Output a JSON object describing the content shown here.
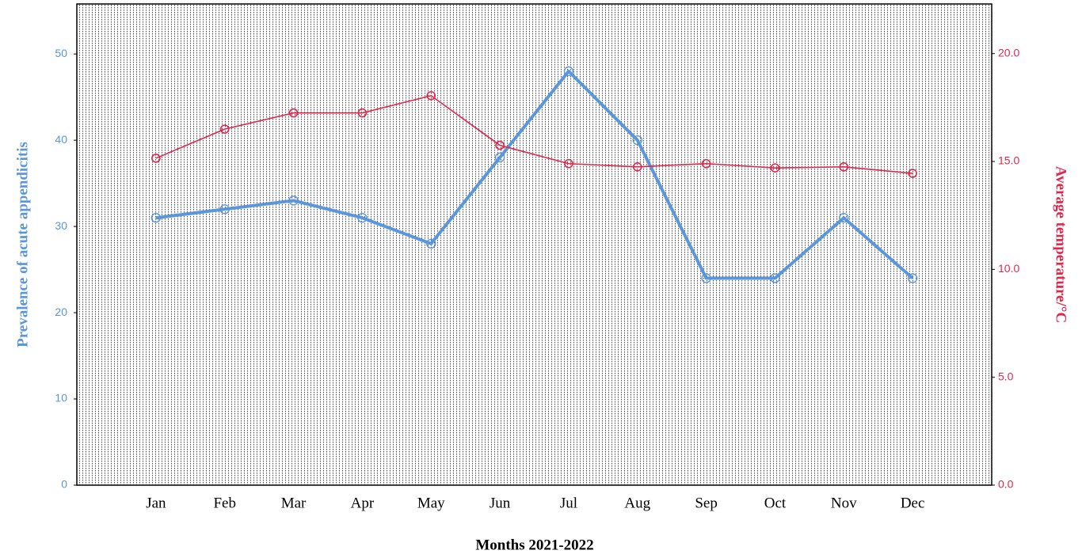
{
  "chart_data": {
    "type": "line",
    "x_label": "Months  2021-2022",
    "y_label": "Prevalence  of acute appendicitis",
    "y2_label": "Average temperature/°C",
    "categories": [
      "Jan",
      "Feb",
      "Mar",
      "Apr",
      "May",
      "Jun",
      "Jul",
      "Aug",
      "Sep",
      "Oct",
      "Nov",
      "Dec"
    ],
    "series": [
      {
        "color": "#5a96dc",
        "values": [
          31,
          32,
          33,
          31,
          28,
          38,
          48,
          40,
          24,
          24,
          31,
          24
        ]
      },
      {
        "color": "#e0284e",
        "axis": "y2",
        "values": [
          15.15,
          16.5,
          17.25,
          17.25,
          18.05,
          15.75,
          14.9,
          14.75,
          14.9,
          14.7,
          14.75,
          14.45
        ]
      }
    ],
    "ylim": [
      0,
      55.8
    ],
    "yticks": [
      0,
      10,
      20,
      30,
      40,
      50
    ],
    "y2lim": [
      0,
      22.3
    ],
    "y2ticks": [
      {
        "value": 0,
        "label": "0.0"
      },
      {
        "value": 5,
        "label": "5.0"
      },
      {
        "value": 10,
        "label": "10.0"
      },
      {
        "value": 15,
        "label": "15.0"
      },
      {
        "value": 20,
        "label": "20.0"
      }
    ]
  }
}
